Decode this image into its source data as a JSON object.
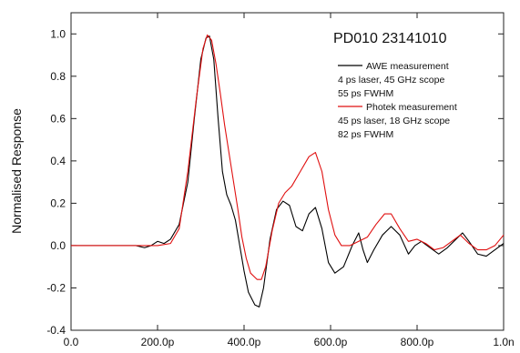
{
  "chart_data": {
    "type": "line",
    "title": "PD010 23141010",
    "xlabel": "",
    "ylabel": "Normalised Response",
    "xlim": [
      0,
      1e-09
    ],
    "ylim": [
      -0.4,
      1.1
    ],
    "x_ticks": [
      0,
      2e-10,
      4e-10,
      6e-10,
      8e-10,
      1e-09
    ],
    "x_tick_labels": [
      "0.0",
      "200.0p",
      "400.0p",
      "600.0p",
      "800.0p",
      "1.0n"
    ],
    "y_ticks": [
      -0.4,
      -0.2,
      0.0,
      0.2,
      0.4,
      0.6,
      0.8,
      1.0
    ],
    "y_tick_labels": [
      "-0.4",
      "-0.2",
      "0.0",
      "0.2",
      "0.4",
      "0.6",
      "0.8",
      "1.0"
    ],
    "grid": false,
    "legend_position": "top-right",
    "series": [
      {
        "name": "AWE measurement",
        "label_lines": [
          "4 ps laser, 45 GHz scope",
          "55 ps FWHM"
        ],
        "color": "#000000",
        "points": [
          [
            0.0,
            0.0
          ],
          [
            5e-11,
            0.0
          ],
          [
            1e-10,
            0.0
          ],
          [
            1.5e-10,
            0.0
          ],
          [
            1.7e-10,
            -0.01
          ],
          [
            1.85e-10,
            0.0
          ],
          [
            2e-10,
            0.02
          ],
          [
            2.15e-10,
            0.01
          ],
          [
            2.3e-10,
            0.03
          ],
          [
            2.5e-10,
            0.1
          ],
          [
            2.7e-10,
            0.3
          ],
          [
            2.85e-10,
            0.6
          ],
          [
            3e-10,
            0.88
          ],
          [
            3.12e-10,
            0.98
          ],
          [
            3.2e-10,
            0.99
          ],
          [
            3.3e-10,
            0.88
          ],
          [
            3.4e-10,
            0.6
          ],
          [
            3.5e-10,
            0.35
          ],
          [
            3.6e-10,
            0.24
          ],
          [
            3.7e-10,
            0.19
          ],
          [
            3.8e-10,
            0.12
          ],
          [
            3.9e-10,
            0.0
          ],
          [
            4e-10,
            -0.12
          ],
          [
            4.1e-10,
            -0.22
          ],
          [
            4.25e-10,
            -0.28
          ],
          [
            4.35e-10,
            -0.29
          ],
          [
            4.45e-10,
            -0.2
          ],
          [
            4.6e-10,
            0.03
          ],
          [
            4.75e-10,
            0.17
          ],
          [
            4.9e-10,
            0.21
          ],
          [
            5.05e-10,
            0.19
          ],
          [
            5.2e-10,
            0.09
          ],
          [
            5.35e-10,
            0.07
          ],
          [
            5.5e-10,
            0.15
          ],
          [
            5.65e-10,
            0.18
          ],
          [
            5.8e-10,
            0.08
          ],
          [
            5.95e-10,
            -0.08
          ],
          [
            6.1e-10,
            -0.13
          ],
          [
            6.3e-10,
            -0.1
          ],
          [
            6.5e-10,
            0.0
          ],
          [
            6.65e-10,
            0.06
          ],
          [
            6.75e-10,
            -0.02
          ],
          [
            6.85e-10,
            -0.08
          ],
          [
            7e-10,
            -0.02
          ],
          [
            7.2e-10,
            0.05
          ],
          [
            7.4e-10,
            0.09
          ],
          [
            7.6e-10,
            0.05
          ],
          [
            7.8e-10,
            -0.04
          ],
          [
            7.95e-10,
            0.0
          ],
          [
            8.1e-10,
            0.02
          ],
          [
            8.3e-10,
            -0.01
          ],
          [
            8.5e-10,
            -0.04
          ],
          [
            8.7e-10,
            -0.01
          ],
          [
            8.9e-10,
            0.03
          ],
          [
            9.05e-10,
            0.06
          ],
          [
            9.2e-10,
            0.02
          ],
          [
            9.4e-10,
            -0.04
          ],
          [
            9.6e-10,
            -0.05
          ],
          [
            9.8e-10,
            -0.02
          ],
          [
            1e-09,
            0.01
          ]
        ]
      },
      {
        "name": "Photek measurement",
        "label_lines": [
          "45 ps laser, 18 GHz scope",
          "82 ps FWHM"
        ],
        "color": "#e01010",
        "points": [
          [
            0.0,
            0.0
          ],
          [
            1e-10,
            0.0
          ],
          [
            1.5e-10,
            0.0
          ],
          [
            2e-10,
            0.0
          ],
          [
            2.3e-10,
            0.01
          ],
          [
            2.5e-10,
            0.08
          ],
          [
            2.7e-10,
            0.35
          ],
          [
            2.9e-10,
            0.7
          ],
          [
            3.05e-10,
            0.93
          ],
          [
            3.15e-10,
            0.995
          ],
          [
            3.25e-10,
            0.97
          ],
          [
            3.35e-10,
            0.86
          ],
          [
            3.45e-10,
            0.72
          ],
          [
            3.55e-10,
            0.57
          ],
          [
            3.65e-10,
            0.44
          ],
          [
            3.75e-10,
            0.31
          ],
          [
            3.85e-10,
            0.18
          ],
          [
            3.95e-10,
            0.04
          ],
          [
            4.05e-10,
            -0.06
          ],
          [
            4.15e-10,
            -0.13
          ],
          [
            4.3e-10,
            -0.16
          ],
          [
            4.4e-10,
            -0.16
          ],
          [
            4.5e-10,
            -0.1
          ],
          [
            4.65e-10,
            0.07
          ],
          [
            4.8e-10,
            0.2
          ],
          [
            4.95e-10,
            0.25
          ],
          [
            5.1e-10,
            0.28
          ],
          [
            5.3e-10,
            0.35
          ],
          [
            5.5e-10,
            0.42
          ],
          [
            5.65e-10,
            0.44
          ],
          [
            5.8e-10,
            0.35
          ],
          [
            5.95e-10,
            0.17
          ],
          [
            6.1e-10,
            0.05
          ],
          [
            6.25e-10,
            0.0
          ],
          [
            6.45e-10,
            0.0
          ],
          [
            6.65e-10,
            0.02
          ],
          [
            6.85e-10,
            0.04
          ],
          [
            7.05e-10,
            0.1
          ],
          [
            7.25e-10,
            0.15
          ],
          [
            7.4e-10,
            0.15
          ],
          [
            7.6e-10,
            0.08
          ],
          [
            7.8e-10,
            0.02
          ],
          [
            8e-10,
            0.03
          ],
          [
            8.2e-10,
            0.01
          ],
          [
            8.4e-10,
            -0.02
          ],
          [
            8.6e-10,
            -0.01
          ],
          [
            8.8e-10,
            0.02
          ],
          [
            9e-10,
            0.05
          ],
          [
            9.2e-10,
            0.01
          ],
          [
            9.4e-10,
            -0.02
          ],
          [
            9.6e-10,
            -0.02
          ],
          [
            9.8e-10,
            0.0
          ],
          [
            1e-09,
            0.05
          ]
        ]
      }
    ]
  }
}
